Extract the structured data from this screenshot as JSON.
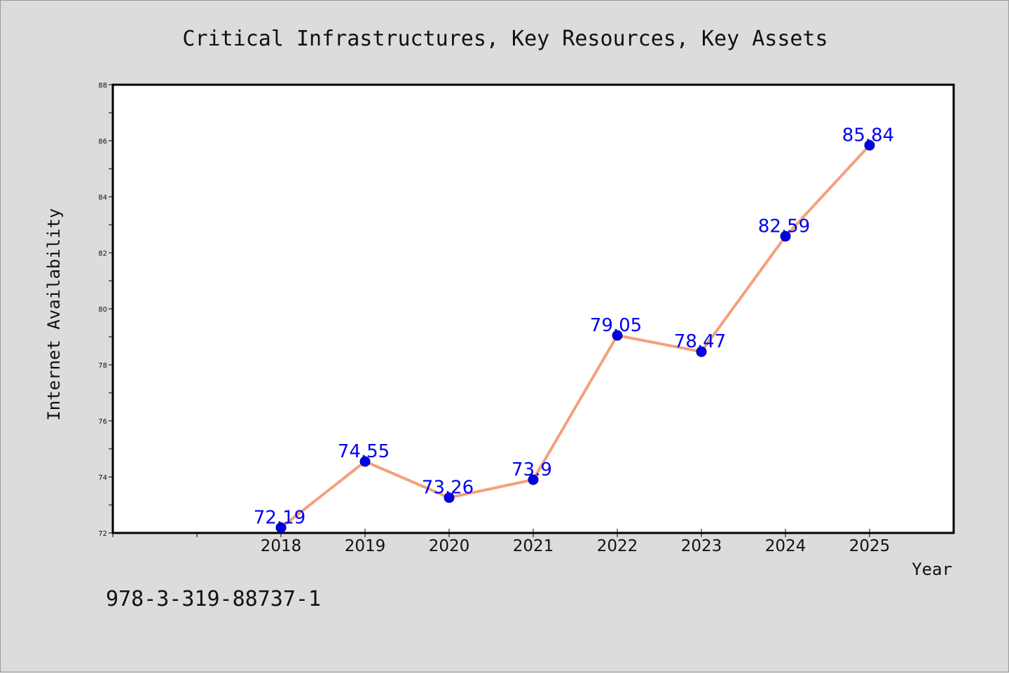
{
  "colors": {
    "background": "#dcdcdc",
    "plot_background": "#ffffff",
    "line": "#f4a07c",
    "marker": "#0000ee",
    "point_label": "#0000ee",
    "axis": "#000000"
  },
  "footer": {
    "isbn": "978-3-319-88737-1"
  },
  "chart_data": {
    "type": "line",
    "title": "Critical Infrastructures, Key Resources, Key Assets",
    "xlabel": "Year",
    "ylabel": "Internet Availability",
    "x": [
      "2018",
      "2019",
      "2020",
      "2021",
      "2022",
      "2023",
      "2024",
      "2025"
    ],
    "x_axis_slots": 10,
    "ylim": [
      72,
      88
    ],
    "yticks": [
      "72",
      "74",
      "76",
      "78",
      "80",
      "82",
      "84",
      "86",
      "88"
    ],
    "series": [
      {
        "values": [
          72.19,
          74.55,
          73.26,
          73.9,
          79.05,
          78.47,
          82.59,
          85.84
        ],
        "labels": [
          "72.19",
          "74.55",
          "73.26",
          "73.9",
          "79.05",
          "78.47",
          "82.59",
          "85.84"
        ]
      }
    ],
    "grid": false,
    "legend": "none"
  }
}
